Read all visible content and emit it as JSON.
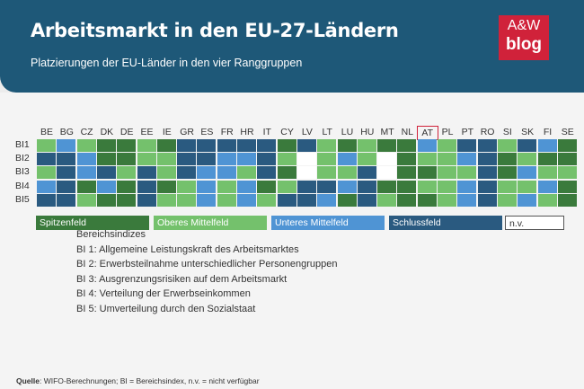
{
  "header": {
    "title": "Arbeitsmarkt in den EU-27-Ländern",
    "subtitle": "Platzierungen der EU-Länder in den vier Ranggruppen",
    "logo_line1": "A&W",
    "logo_line2": "blog"
  },
  "colors": {
    "header_bg": "#1e5878",
    "spitzenfeld": "#3a7a3c",
    "oberes": "#74c16c",
    "unteres": "#4f94d4",
    "schluss": "#2a5a80",
    "nv": "#ffffff",
    "highlight": "#d0223a"
  },
  "chart_data": {
    "type": "heatmap",
    "title": "Arbeitsmarkt in den EU-27-Ländern",
    "subtitle": "Platzierungen der EU-Länder in den vier Ranggruppen",
    "categories": [
      "BE",
      "BG",
      "CZ",
      "DK",
      "DE",
      "EE",
      "IE",
      "GR",
      "ES",
      "FR",
      "HR",
      "IT",
      "CY",
      "LV",
      "LT",
      "LU",
      "HU",
      "MT",
      "NL",
      "AT",
      "PL",
      "PT",
      "RO",
      "SI",
      "SK",
      "FI",
      "SE"
    ],
    "highlighted_category": "AT",
    "rows": [
      "BI1",
      "BI2",
      "BI3",
      "BI4",
      "BI5"
    ],
    "levels": {
      "1": "Spitzenfeld",
      "2": "Oberes Mittelfeld",
      "3": "Unteres Mittelfeld",
      "4": "Schlussfeld",
      "0": "n.v."
    },
    "values": [
      [
        2,
        3,
        2,
        1,
        1,
        2,
        1,
        4,
        4,
        4,
        4,
        4,
        1,
        4,
        2,
        1,
        2,
        1,
        1,
        3,
        2,
        4,
        4,
        2,
        4,
        3,
        1
      ],
      [
        4,
        4,
        3,
        1,
        1,
        2,
        2,
        4,
        4,
        3,
        3,
        4,
        2,
        0,
        2,
        3,
        2,
        0,
        1,
        2,
        2,
        3,
        4,
        1,
        2,
        1,
        1
      ],
      [
        2,
        4,
        3,
        4,
        2,
        4,
        2,
        4,
        3,
        3,
        2,
        4,
        1,
        0,
        2,
        2,
        4,
        0,
        1,
        1,
        2,
        2,
        4,
        1,
        3,
        2,
        2
      ],
      [
        3,
        4,
        1,
        3,
        1,
        4,
        1,
        2,
        3,
        2,
        3,
        1,
        2,
        4,
        4,
        3,
        4,
        1,
        1,
        2,
        2,
        3,
        4,
        2,
        2,
        3,
        1
      ],
      [
        4,
        4,
        2,
        1,
        1,
        4,
        2,
        2,
        3,
        2,
        3,
        2,
        4,
        4,
        3,
        1,
        4,
        2,
        1,
        1,
        2,
        3,
        4,
        2,
        3,
        2,
        1
      ]
    ]
  },
  "legend": [
    {
      "key": "1",
      "label": "Spitzenfeld"
    },
    {
      "key": "2",
      "label": "Oberes Mittelfeld"
    },
    {
      "key": "3",
      "label": "Unteres Mittelfeld"
    },
    {
      "key": "4",
      "label": "Schlussfeld"
    },
    {
      "key": "0",
      "label": "n.v."
    }
  ],
  "indices": {
    "heading": "Bereichsindizes",
    "items": [
      "BI 1: Allgemeine Leistungskraft des Arbeitsmarktes",
      "BI 2: Erwerbsteilnahme unterschiedlicher Personengruppen",
      "BI 3: Ausgrenzungsrisiken auf dem Arbeitsmarkt",
      "BI 4: Verteilung der Erwerbseinkommen",
      "BI 5: Umverteilung durch den Sozialstaat"
    ]
  },
  "source": {
    "label": "Quelle",
    "text": ": WIFO-Berechnungen; BI = Bereichsindex, n.v. = nicht verfügbar"
  }
}
